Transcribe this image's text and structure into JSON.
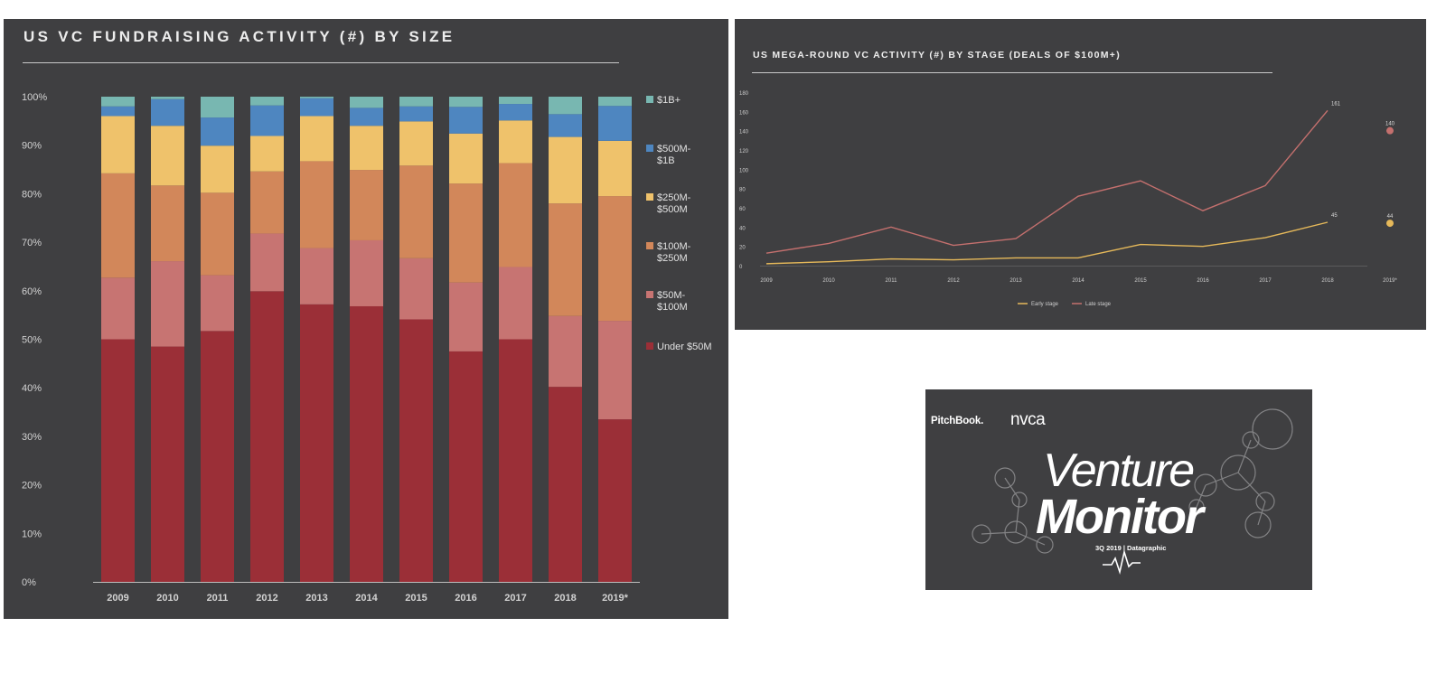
{
  "chart_data": [
    {
      "type": "bar",
      "stacked": true,
      "percent": true,
      "title": "US VC FUNDRAISING ACTIVITY (#) BY SIZE",
      "categories": [
        "2009",
        "2010",
        "2011",
        "2012",
        "2013",
        "2014",
        "2015",
        "2016",
        "2017",
        "2018",
        "2019*"
      ],
      "y_ticks": [
        "0%",
        "10%",
        "20%",
        "30%",
        "40%",
        "50%",
        "60%",
        "70%",
        "80%",
        "90%",
        "100%"
      ],
      "ylim": [
        0,
        100
      ],
      "legend_position": "right",
      "series": [
        {
          "name": "Under $50M",
          "color": "#9b2f37",
          "values": [
            50,
            48.5,
            51.7,
            59.9,
            57.2,
            56.8,
            54.1,
            47.5,
            50,
            40.2,
            33.5
          ]
        },
        {
          "name": "$50M- $100M",
          "color": "#c77472",
          "values": [
            12.7,
            17.6,
            11.5,
            11.9,
            11.6,
            13.6,
            12.6,
            14.2,
            14.9,
            14.6,
            20.3
          ]
        },
        {
          "name": "$100M- $250M",
          "color": "#d2875a",
          "values": [
            21.5,
            15.6,
            17,
            12.8,
            17.9,
            14.5,
            19.1,
            20.4,
            21.4,
            23.2,
            25.7
          ]
        },
        {
          "name": "$250M- $500M",
          "color": "#efc26b",
          "values": [
            11.8,
            12.3,
            9.7,
            7.3,
            9.3,
            9.1,
            9.1,
            10.3,
            8.8,
            13.7,
            11.4
          ]
        },
        {
          "name": "$500M- $1B",
          "color": "#4e86c0",
          "values": [
            2,
            5.5,
            5.8,
            6.3,
            3.7,
            3.7,
            3.1,
            5.5,
            3.4,
            4.7,
            7.2
          ]
        },
        {
          "name": "$1B+",
          "color": "#78b7b1",
          "values": [
            2,
            0.5,
            4.3,
            1.8,
            0.3,
            2.3,
            2,
            2.1,
            1.5,
            3.6,
            1.9
          ]
        }
      ]
    },
    {
      "type": "line",
      "title": "US MEGA-ROUND VC ACTIVITY (#) BY STAGE (DEALS OF $100M+)",
      "categories": [
        "2009",
        "2010",
        "2011",
        "2012",
        "2013",
        "2014",
        "2015",
        "2016",
        "2017",
        "2018",
        "2019*"
      ],
      "y_ticks": [
        "0",
        "20",
        "40",
        "60",
        "80",
        "100",
        "120",
        "140",
        "160",
        "180"
      ],
      "ylim": [
        0,
        180
      ],
      "legend_position": "bottom",
      "series": [
        {
          "name": "Early stage",
          "color": "#e6b95a",
          "values": [
            2,
            4,
            7,
            6,
            8,
            8,
            22,
            20,
            29,
            45,
            44
          ],
          "labels": {
            "2018": "45",
            "2019*": "44"
          }
        },
        {
          "name": "Late stage",
          "color": "#c4706e",
          "values": [
            13,
            23,
            40,
            21,
            28,
            72,
            88,
            57,
            83,
            161,
            140
          ],
          "labels": {
            "2018": "161",
            "2019*": "140"
          }
        }
      ],
      "note": "2019* shown as a separate point"
    }
  ],
  "cover": {
    "brand_1": "PitchBook.",
    "brand_2": "nvca",
    "title_1": "Venture",
    "title_2": "Monitor",
    "subtitle": "3Q 2019 | Datagraphic"
  },
  "icons": [
    "molecule-graphic-icon",
    "heartbeat-line-icon"
  ]
}
